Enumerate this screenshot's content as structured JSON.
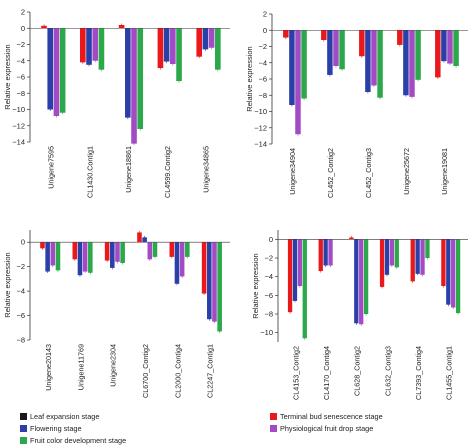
{
  "series_colors": [
    "#1a1a1a",
    "#e8181b",
    "#2b3fa8",
    "#a24bc4",
    "#2aa84a"
  ],
  "chart_data": [
    {
      "type": "bar",
      "ylabel": "Relative expression",
      "ylim": [
        -14,
        2
      ],
      "yticks": [
        2,
        0,
        -2,
        -4,
        -6,
        -8,
        -10,
        -12,
        -14
      ],
      "grid": false,
      "categories": [
        "Unigene7595",
        "CL1430.Contig1",
        "Unigene18861",
        "CL4599.Contig2",
        "Unigene34865"
      ],
      "series": [
        {
          "name": "Leaf expansion stage",
          "values": [
            0,
            0,
            0,
            0,
            0
          ]
        },
        {
          "name": "Terminal bud senescence stage",
          "values": [
            0.3,
            -4.2,
            0.4,
            -4.9,
            -3.5
          ]
        },
        {
          "name": "Flowering stage",
          "values": [
            -10.0,
            -4.5,
            -11.0,
            -4.1,
            -2.6
          ]
        },
        {
          "name": "Physiological fruit drop stage",
          "values": [
            -10.8,
            -4.0,
            -14.2,
            -4.4,
            -2.4
          ]
        },
        {
          "name": "Fruit color development stage",
          "values": [
            -10.4,
            -5.1,
            -12.4,
            -6.5,
            -5.1
          ]
        }
      ]
    },
    {
      "type": "bar",
      "ylabel": "Relative expression",
      "ylim": [
        -14,
        2
      ],
      "yticks": [
        2,
        0,
        -2,
        -4,
        -6,
        -8,
        -10,
        -12,
        -14
      ],
      "grid": false,
      "categories": [
        "Unigene34904",
        "CL452_Contig2",
        "CL452_Contig3",
        "Unigene25672",
        "Unigene19081"
      ],
      "series": [
        {
          "name": "Leaf expansion stage",
          "values": [
            0,
            0,
            0,
            0,
            0
          ]
        },
        {
          "name": "Terminal bud senescence stage",
          "values": [
            -0.9,
            -1.2,
            -3.2,
            -1.8,
            -5.8
          ]
        },
        {
          "name": "Flowering stage",
          "values": [
            -9.2,
            -5.5,
            -7.6,
            -8.0,
            -3.8
          ]
        },
        {
          "name": "Physiological fruit drop stage",
          "values": [
            -12.8,
            -4.4,
            -6.8,
            -8.2,
            -4.1
          ]
        },
        {
          "name": "Fruit color development stage",
          "values": [
            -8.4,
            -4.8,
            -8.3,
            -6.1,
            -4.4
          ]
        }
      ]
    },
    {
      "type": "bar",
      "ylabel": "Relative expression",
      "ylim": [
        -8,
        1
      ],
      "yticks": [
        0,
        -2,
        -4,
        -6,
        -8
      ],
      "grid": false,
      "categories": [
        "Unigene20143",
        "Unigene11769",
        "Unigene2304",
        "CL6700_Contig2",
        "CL2000_Contig4",
        "CL2247_Contig1"
      ],
      "series": [
        {
          "name": "Leaf expansion stage",
          "values": [
            0,
            0,
            0,
            0,
            0,
            0
          ]
        },
        {
          "name": "Terminal bud senescence stage",
          "values": [
            -0.5,
            -1.4,
            -1.5,
            0.8,
            -1.2,
            -4.2
          ]
        },
        {
          "name": "Flowering stage",
          "values": [
            -2.4,
            -2.7,
            -2.1,
            0.4,
            -3.4,
            -6.3
          ]
        },
        {
          "name": "Physiological fruit drop stage",
          "values": [
            -1.9,
            -2.4,
            -1.6,
            -1.4,
            -2.8,
            -6.5
          ]
        },
        {
          "name": "Fruit color development stage",
          "values": [
            -2.3,
            -2.5,
            -1.7,
            -1.2,
            -1.2,
            -7.3
          ]
        }
      ]
    },
    {
      "type": "bar",
      "ylabel": "Relative expression",
      "ylim": [
        -11,
        1
      ],
      "yticks": [
        0,
        -2,
        -4,
        -6,
        -8,
        -10
      ],
      "grid": false,
      "categories": [
        "CL4153_Contig2",
        "CL4170_Contig4",
        "CL628_Contig2",
        "CL632_Contig3",
        "CL7393_Contig4",
        "CL1455_Contig1"
      ],
      "series": [
        {
          "name": "Leaf expansion stage",
          "values": [
            0,
            0,
            0,
            0,
            0,
            0
          ]
        },
        {
          "name": "Terminal bud senescence stage",
          "values": [
            -7.8,
            -3.4,
            0.2,
            -5.1,
            -4.5,
            -5.0
          ]
        },
        {
          "name": "Flowering stage",
          "values": [
            -6.6,
            -2.8,
            -9.0,
            -3.8,
            -3.7,
            -7.0
          ]
        },
        {
          "name": "Physiological fruit drop stage",
          "values": [
            -5.0,
            -2.8,
            -9.1,
            -2.8,
            -3.8,
            -7.3
          ]
        },
        {
          "name": "Fruit color development stage",
          "values": [
            -10.6,
            0,
            -8.0,
            -3.0,
            -2.0,
            -7.9
          ]
        }
      ]
    }
  ],
  "legend": {
    "entries": [
      {
        "label": "Leaf expansion stage",
        "color": "#1a1a1a"
      },
      {
        "label": "Terminal bud senescence stage",
        "color": "#e8181b"
      },
      {
        "label": "Flowering stage",
        "color": "#2b3fa8"
      },
      {
        "label": "Physiological fruit drop stage",
        "color": "#a24bc4"
      },
      {
        "label": "Fruit color development stage",
        "color": "#2aa84a"
      }
    ]
  }
}
